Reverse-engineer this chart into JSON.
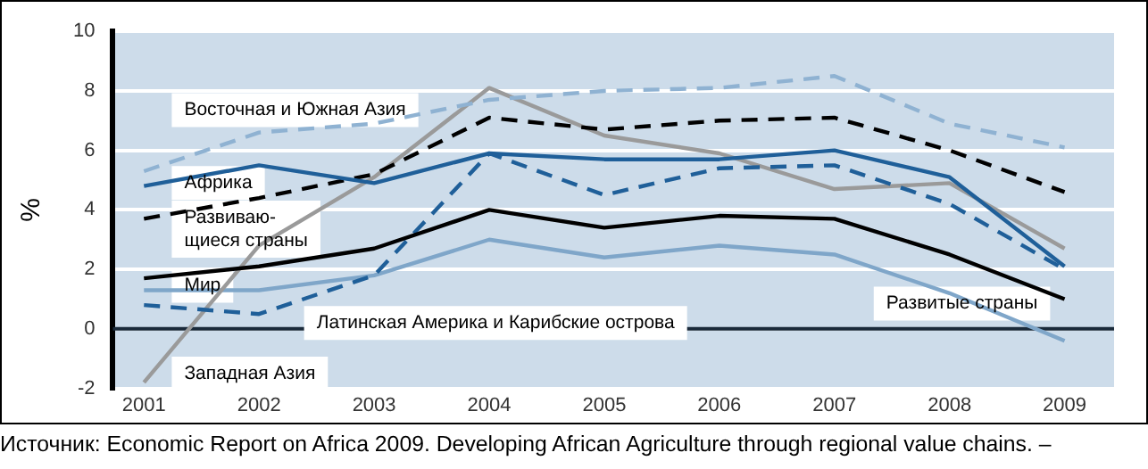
{
  "chart_data": {
    "type": "line",
    "ylabel": "%",
    "x": [
      2001,
      2002,
      2003,
      2004,
      2005,
      2006,
      2007,
      2008,
      2009
    ],
    "xlim": [
      2000.73,
      2009.43
    ],
    "xticks": [
      2001,
      2002,
      2003,
      2004,
      2005,
      2006,
      2007,
      2008,
      2009
    ],
    "ylim": [
      -2,
      10
    ],
    "yticks": [
      -2,
      0,
      2,
      4,
      6,
      8,
      10
    ],
    "grid": "y",
    "legend": false,
    "marker": "none",
    "series": [
      {
        "name": "Восточная и Южная Азия",
        "color": "#8fb2d2",
        "line_style": "dashed",
        "values": [
          5.3,
          6.6,
          6.9,
          7.7,
          8.0,
          8.1,
          8.5,
          6.9,
          6.1
        ]
      },
      {
        "name": "Африка",
        "color": "#1f5f99",
        "line_style": "solid",
        "values": [
          4.8,
          5.5,
          4.9,
          5.9,
          5.7,
          5.7,
          6.0,
          5.1,
          2.1
        ]
      },
      {
        "name": "Развиваю-\nщиеся страны",
        "color": "#000000",
        "line_style": "dashed",
        "values": [
          3.7,
          4.4,
          5.2,
          7.1,
          6.7,
          7.0,
          7.1,
          6.0,
          4.6
        ]
      },
      {
        "name": "Мир",
        "color": "#000000",
        "line_style": "solid",
        "values": [
          1.7,
          2.1,
          2.7,
          4.0,
          3.4,
          3.8,
          3.7,
          2.5,
          1.0
        ]
      },
      {
        "name": "Латинская Америка и Карибские острова",
        "color": "#1f5f99",
        "line_style": "dashed",
        "values": [
          0.8,
          0.5,
          1.8,
          5.9,
          4.5,
          5.4,
          5.5,
          4.2,
          2.0
        ]
      },
      {
        "name": "Западная Азия",
        "color": "#9a9a9a",
        "line_style": "solid",
        "values": [
          -1.8,
          2.8,
          5.1,
          8.1,
          6.5,
          5.9,
          4.7,
          4.9,
          2.7
        ]
      },
      {
        "name": "Развитые страны",
        "color": "#7fa6c9",
        "line_style": "solid",
        "values": [
          1.3,
          1.3,
          1.8,
          3.0,
          2.4,
          2.8,
          2.5,
          1.2,
          -0.4
        ]
      }
    ],
    "ref_lines": [
      {
        "axis": "y",
        "value": 0,
        "color": "#1a2a3a",
        "line_style": "solid"
      }
    ],
    "annotations": [
      "Источник: Economic Report on Africa 2009. Developing African Agriculture through regional value chains. –"
    ]
  }
}
